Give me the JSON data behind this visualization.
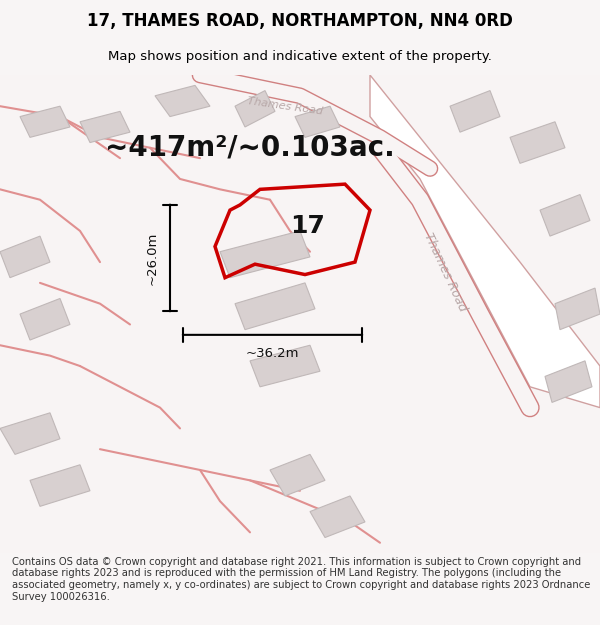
{
  "title": "17, THAMES ROAD, NORTHAMPTON, NN4 0RD",
  "subtitle": "Map shows position and indicative extent of the property.",
  "area_text": "~417m²/~0.103ac.",
  "dim_width": "~36.2m",
  "dim_height": "~26.0m",
  "number_label": "17",
  "footer_text": "Contains OS data © Crown copyright and database right 2021. This information is subject to Crown copyright and database rights 2023 and is reproduced with the permission of HM Land Registry. The polygons (including the associated geometry, namely x, y co-ordinates) are subject to Crown copyright and database rights 2023 Ordnance Survey 100026316.",
  "bg_color": "#f5f0f0",
  "map_bg": "#f9f6f6",
  "road_color": "#e8a0a0",
  "road_fill": "#ffffff",
  "building_fill": "#d8d0d0",
  "building_edge": "#c0b8b8",
  "highlight_color": "#cc0000",
  "title_color": "#000000",
  "dim_color": "#000000",
  "label_color": "#000000",
  "road_label_color": "#b0a8a8"
}
